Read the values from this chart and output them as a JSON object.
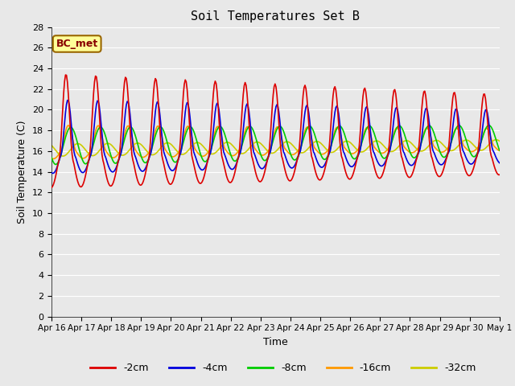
{
  "title": "Soil Temperatures Set B",
  "xlabel": "Time",
  "ylabel": "Soil Temperature (C)",
  "annotation": "BC_met",
  "ylim": [
    0,
    28
  ],
  "yticks": [
    0,
    2,
    4,
    6,
    8,
    10,
    12,
    14,
    16,
    18,
    20,
    22,
    24,
    26,
    28
  ],
  "xtick_labels": [
    "Apr 16",
    "Apr 17",
    "Apr 18",
    "Apr 19",
    "Apr 20",
    "Apr 21",
    "Apr 22",
    "Apr 23",
    "Apr 24",
    "Apr 25",
    "Apr 26",
    "Apr 27",
    "Apr 28",
    "Apr 29",
    "Apr 30",
    "May 1"
  ],
  "series_colors": {
    "-2cm": "#dd0000",
    "-4cm": "#0000dd",
    "-8cm": "#00cc00",
    "-16cm": "#ff9900",
    "-32cm": "#cccc00"
  },
  "linewidth": 1.2,
  "background_color": "#e8e8e8",
  "plot_bg_color": "#e8e8e8",
  "grid_color": "#ffffff",
  "figsize": [
    6.4,
    4.8
  ],
  "dpi": 100,
  "annotation_facecolor": "#ffff99",
  "annotation_edgecolor": "#996600",
  "annotation_textcolor": "#880000"
}
